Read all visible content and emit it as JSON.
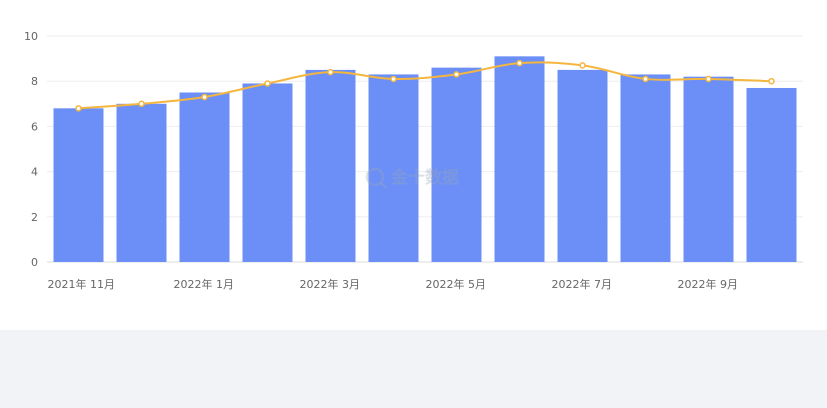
{
  "chart_data": {
    "type": "bar",
    "title": "",
    "xlabel": "",
    "ylabel": "",
    "ylim": [
      0,
      10
    ],
    "yticks": [
      0,
      2,
      4,
      6,
      8,
      10
    ],
    "categories": [
      "2021-11",
      "2021-12",
      "2022-01",
      "2022-02",
      "2022-03",
      "2022-04",
      "2022-05",
      "2022-06",
      "2022-07",
      "2022-08",
      "2022-09",
      "2022-10"
    ],
    "x_tick_labels": [
      {
        "category": "2021-11",
        "label": "2021年 11月"
      },
      {
        "category": "2022-01",
        "label": "2022年 1月"
      },
      {
        "category": "2022-03",
        "label": "2022年 3月"
      },
      {
        "category": "2022-05",
        "label": "2022年 5月"
      },
      {
        "category": "2022-07",
        "label": "2022年 7月"
      },
      {
        "category": "2022-09",
        "label": "2022年 9月"
      }
    ],
    "series": [
      {
        "type": "bar",
        "color": "#6b8ff7",
        "values": [
          6.8,
          7.0,
          7.5,
          7.9,
          8.5,
          8.3,
          8.6,
          9.1,
          8.5,
          8.3,
          8.2,
          7.7
        ]
      },
      {
        "type": "line",
        "smooth": true,
        "color": "#f4b63e",
        "values": [
          6.8,
          7.0,
          7.3,
          7.9,
          8.4,
          8.1,
          8.3,
          8.8,
          8.7,
          8.1,
          8.1,
          8.0
        ]
      }
    ],
    "grid": true,
    "legend": "none"
  },
  "watermark": {
    "text": "金十数据",
    "icon": "magnifier-logo-icon"
  }
}
